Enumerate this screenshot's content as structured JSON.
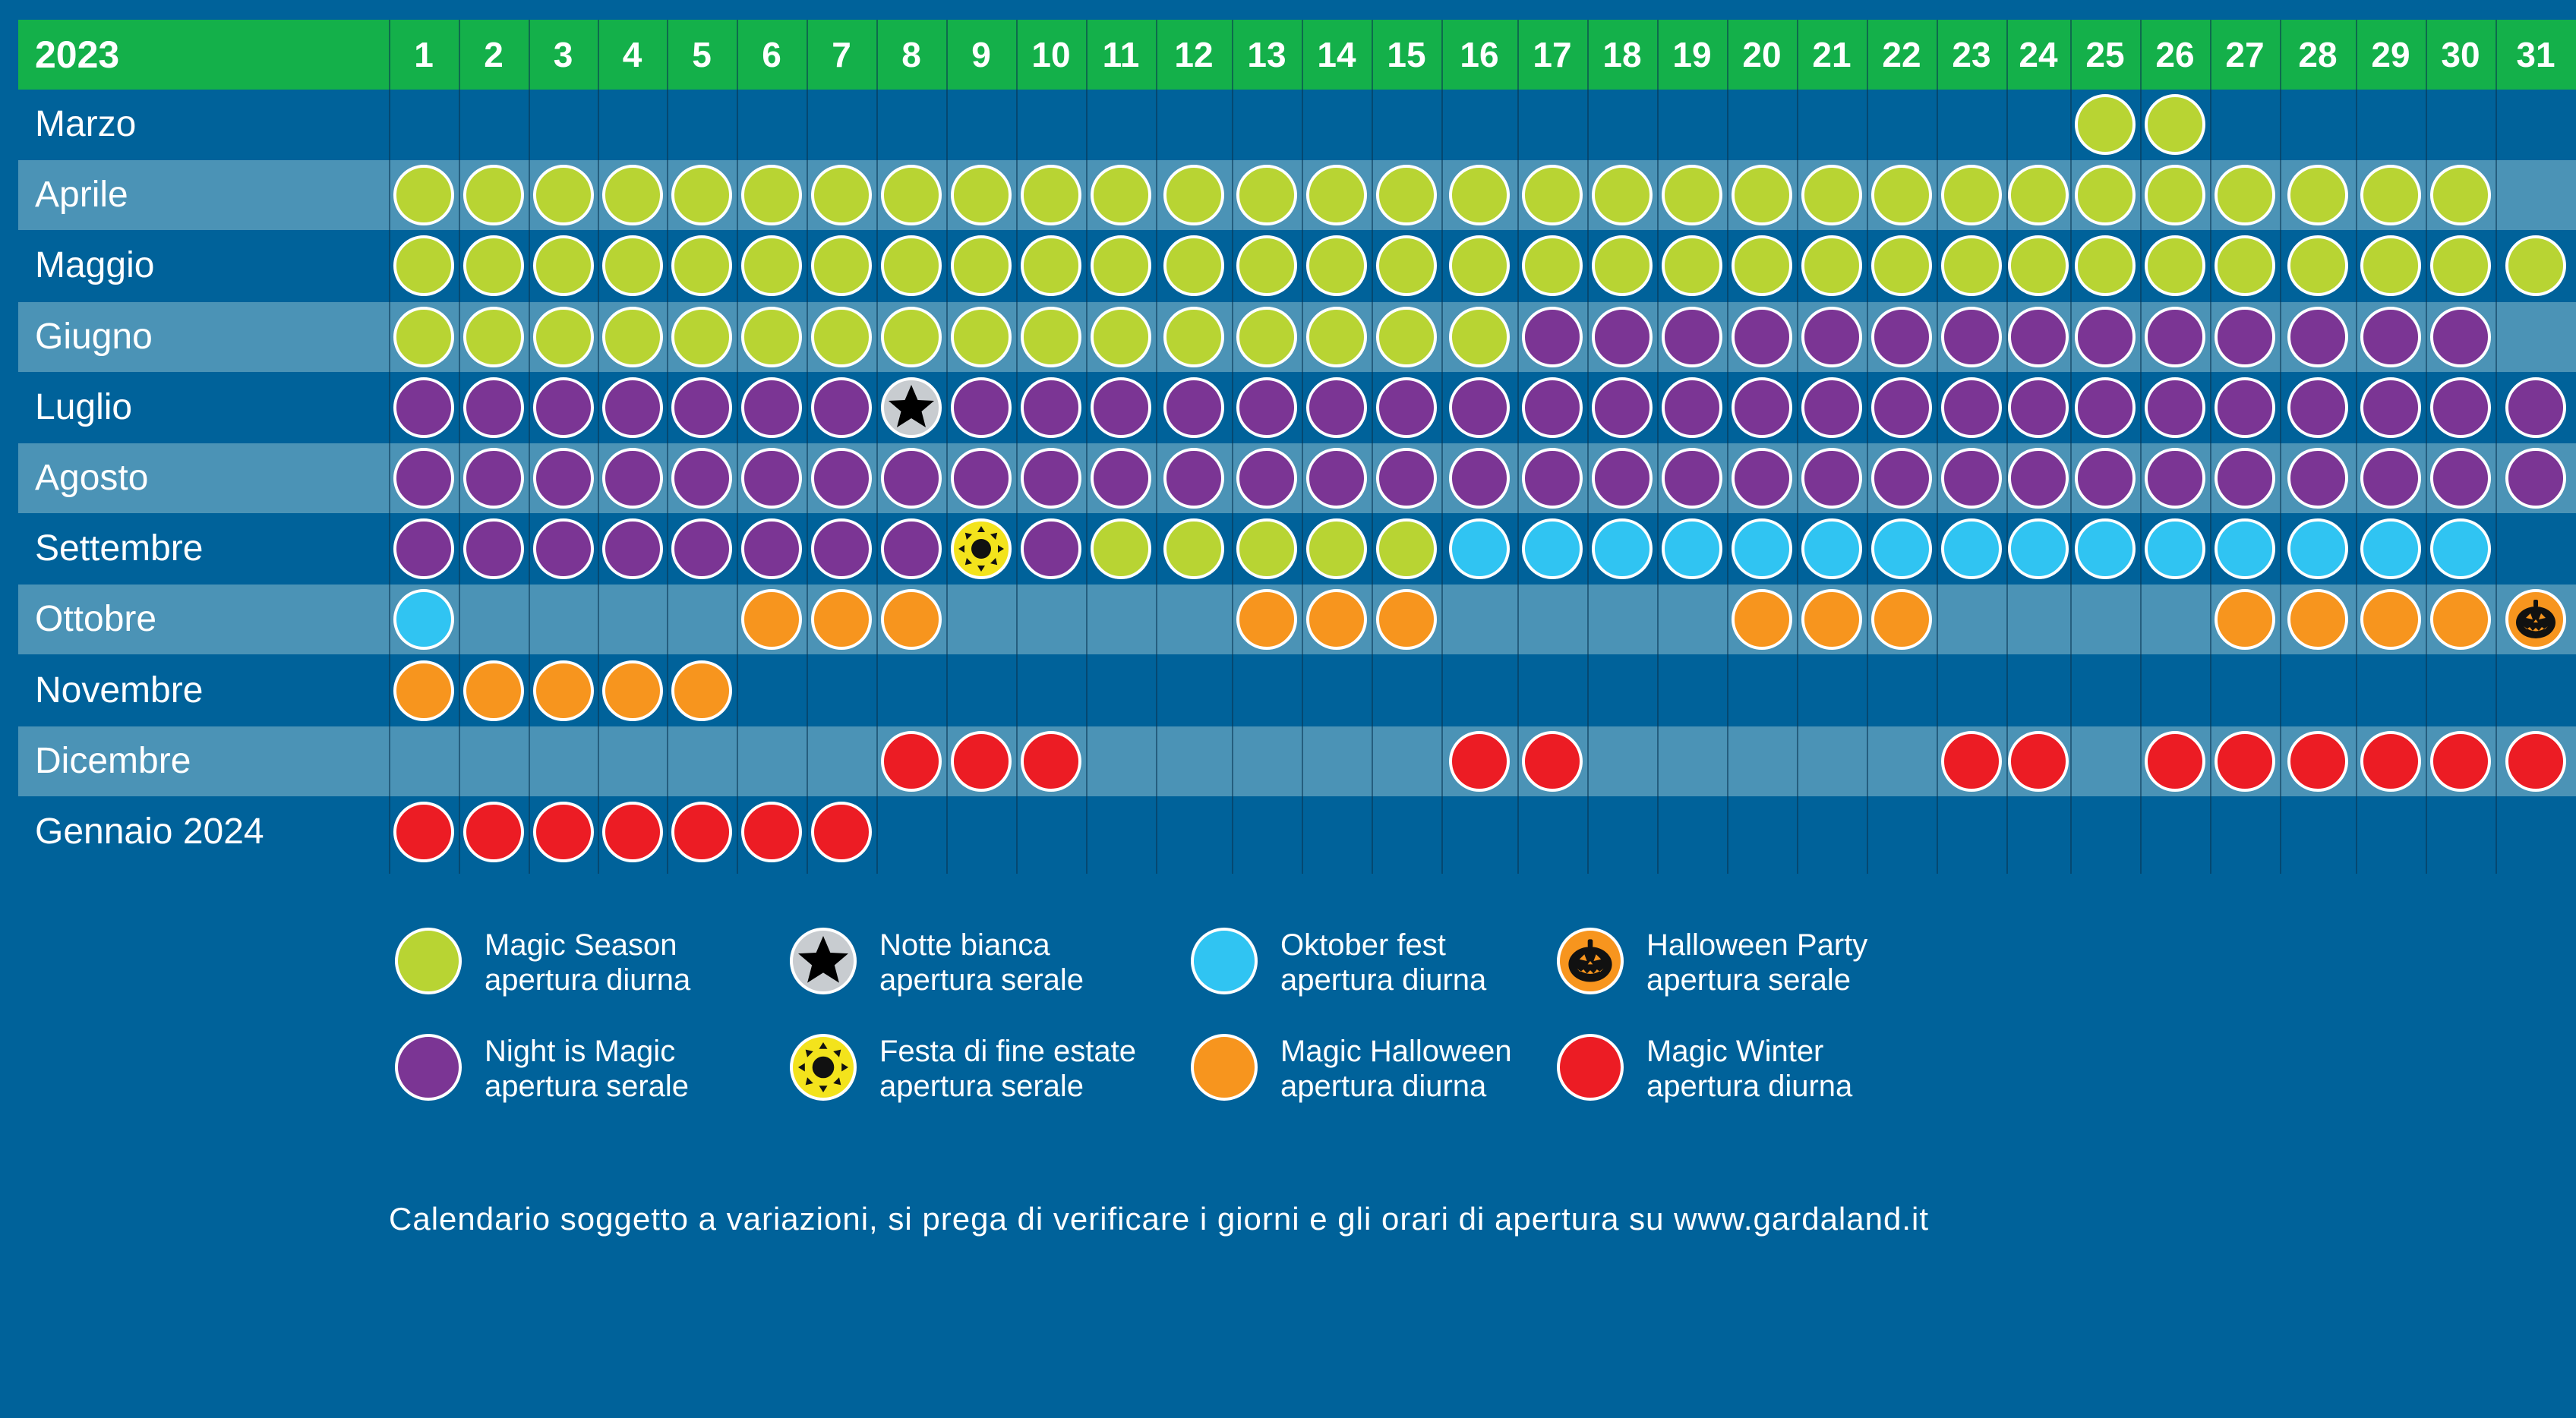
{
  "calendar": {
    "year": "2023",
    "days": [
      "1",
      "2",
      "3",
      "4",
      "5",
      "6",
      "7",
      "8",
      "9",
      "10",
      "11",
      "12",
      "13",
      "14",
      "15",
      "16",
      "17",
      "18",
      "19",
      "20",
      "21",
      "22",
      "23",
      "24",
      "25",
      "26",
      "27",
      "28",
      "29",
      "30",
      "31"
    ],
    "months": [
      {
        "name": "Marzo",
        "days": {
          "25": "magic-season",
          "26": "magic-season"
        }
      },
      {
        "name": "Aprile",
        "days": {
          "1": "magic-season",
          "2": "magic-season",
          "3": "magic-season",
          "4": "magic-season",
          "5": "magic-season",
          "6": "magic-season",
          "7": "magic-season",
          "8": "magic-season",
          "9": "magic-season",
          "10": "magic-season",
          "11": "magic-season",
          "12": "magic-season",
          "13": "magic-season",
          "14": "magic-season",
          "15": "magic-season",
          "16": "magic-season",
          "17": "magic-season",
          "18": "magic-season",
          "19": "magic-season",
          "20": "magic-season",
          "21": "magic-season",
          "22": "magic-season",
          "23": "magic-season",
          "24": "magic-season",
          "25": "magic-season",
          "26": "magic-season",
          "27": "magic-season",
          "28": "magic-season",
          "29": "magic-season",
          "30": "magic-season"
        }
      },
      {
        "name": "Maggio",
        "days": {
          "1": "magic-season",
          "2": "magic-season",
          "3": "magic-season",
          "4": "magic-season",
          "5": "magic-season",
          "6": "magic-season",
          "7": "magic-season",
          "8": "magic-season",
          "9": "magic-season",
          "10": "magic-season",
          "11": "magic-season",
          "12": "magic-season",
          "13": "magic-season",
          "14": "magic-season",
          "15": "magic-season",
          "16": "magic-season",
          "17": "magic-season",
          "18": "magic-season",
          "19": "magic-season",
          "20": "magic-season",
          "21": "magic-season",
          "22": "magic-season",
          "23": "magic-season",
          "24": "magic-season",
          "25": "magic-season",
          "26": "magic-season",
          "27": "magic-season",
          "28": "magic-season",
          "29": "magic-season",
          "30": "magic-season",
          "31": "magic-season"
        }
      },
      {
        "name": "Giugno",
        "days": {
          "1": "magic-season",
          "2": "magic-season",
          "3": "magic-season",
          "4": "magic-season",
          "5": "magic-season",
          "6": "magic-season",
          "7": "magic-season",
          "8": "magic-season",
          "9": "magic-season",
          "10": "magic-season",
          "11": "magic-season",
          "12": "magic-season",
          "13": "magic-season",
          "14": "magic-season",
          "15": "magic-season",
          "16": "magic-season",
          "17": "night-is-magic",
          "18": "night-is-magic",
          "19": "night-is-magic",
          "20": "night-is-magic",
          "21": "night-is-magic",
          "22": "night-is-magic",
          "23": "night-is-magic",
          "24": "night-is-magic",
          "25": "night-is-magic",
          "26": "night-is-magic",
          "27": "night-is-magic",
          "28": "night-is-magic",
          "29": "night-is-magic",
          "30": "night-is-magic"
        }
      },
      {
        "name": "Luglio",
        "days": {
          "1": "night-is-magic",
          "2": "night-is-magic",
          "3": "night-is-magic",
          "4": "night-is-magic",
          "5": "night-is-magic",
          "6": "night-is-magic",
          "7": "night-is-magic",
          "8": "notte-bianca",
          "9": "night-is-magic",
          "10": "night-is-magic",
          "11": "night-is-magic",
          "12": "night-is-magic",
          "13": "night-is-magic",
          "14": "night-is-magic",
          "15": "night-is-magic",
          "16": "night-is-magic",
          "17": "night-is-magic",
          "18": "night-is-magic",
          "19": "night-is-magic",
          "20": "night-is-magic",
          "21": "night-is-magic",
          "22": "night-is-magic",
          "23": "night-is-magic",
          "24": "night-is-magic",
          "25": "night-is-magic",
          "26": "night-is-magic",
          "27": "night-is-magic",
          "28": "night-is-magic",
          "29": "night-is-magic",
          "30": "night-is-magic",
          "31": "night-is-magic"
        }
      },
      {
        "name": "Agosto",
        "days": {
          "1": "night-is-magic",
          "2": "night-is-magic",
          "3": "night-is-magic",
          "4": "night-is-magic",
          "5": "night-is-magic",
          "6": "night-is-magic",
          "7": "night-is-magic",
          "8": "night-is-magic",
          "9": "night-is-magic",
          "10": "night-is-magic",
          "11": "night-is-magic",
          "12": "night-is-magic",
          "13": "night-is-magic",
          "14": "night-is-magic",
          "15": "night-is-magic",
          "16": "night-is-magic",
          "17": "night-is-magic",
          "18": "night-is-magic",
          "19": "night-is-magic",
          "20": "night-is-magic",
          "21": "night-is-magic",
          "22": "night-is-magic",
          "23": "night-is-magic",
          "24": "night-is-magic",
          "25": "night-is-magic",
          "26": "night-is-magic",
          "27": "night-is-magic",
          "28": "night-is-magic",
          "29": "night-is-magic",
          "30": "night-is-magic",
          "31": "night-is-magic"
        }
      },
      {
        "name": "Settembre",
        "days": {
          "1": "night-is-magic",
          "2": "night-is-magic",
          "3": "night-is-magic",
          "4": "night-is-magic",
          "5": "night-is-magic",
          "6": "night-is-magic",
          "7": "night-is-magic",
          "8": "night-is-magic",
          "9": "festa-fine-estate",
          "10": "night-is-magic",
          "11": "magic-season",
          "12": "magic-season",
          "13": "magic-season",
          "14": "magic-season",
          "15": "magic-season",
          "16": "oktober-fest",
          "17": "oktober-fest",
          "18": "oktober-fest",
          "19": "oktober-fest",
          "20": "oktober-fest",
          "21": "oktober-fest",
          "22": "oktober-fest",
          "23": "oktober-fest",
          "24": "oktober-fest",
          "25": "oktober-fest",
          "26": "oktober-fest",
          "27": "oktober-fest",
          "28": "oktober-fest",
          "29": "oktober-fest",
          "30": "oktober-fest"
        }
      },
      {
        "name": "Ottobre",
        "days": {
          "1": "oktober-fest",
          "6": "magic-halloween",
          "7": "magic-halloween",
          "8": "magic-halloween",
          "13": "magic-halloween",
          "14": "magic-halloween",
          "15": "magic-halloween",
          "20": "magic-halloween",
          "21": "magic-halloween",
          "22": "magic-halloween",
          "27": "magic-halloween",
          "28": "magic-halloween",
          "29": "magic-halloween",
          "30": "magic-halloween",
          "31": "halloween-party"
        }
      },
      {
        "name": "Novembre",
        "days": {
          "1": "magic-halloween",
          "2": "magic-halloween",
          "3": "magic-halloween",
          "4": "magic-halloween",
          "5": "magic-halloween"
        }
      },
      {
        "name": "Dicembre",
        "days": {
          "8": "magic-winter",
          "9": "magic-winter",
          "10": "magic-winter",
          "16": "magic-winter",
          "17": "magic-winter",
          "23": "magic-winter",
          "24": "magic-winter",
          "26": "magic-winter",
          "27": "magic-winter",
          "28": "magic-winter",
          "29": "magic-winter",
          "30": "magic-winter",
          "31": "magic-winter"
        }
      },
      {
        "name": "Gennaio 2024",
        "days": {
          "1": "magic-winter",
          "2": "magic-winter",
          "3": "magic-winter",
          "4": "magic-winter",
          "5": "magic-winter",
          "6": "magic-winter",
          "7": "magic-winter"
        }
      }
    ]
  },
  "event_types": {
    "magic-season": {
      "color": "#b8d433",
      "icon": "none"
    },
    "night-is-magic": {
      "color": "#7b3594",
      "icon": "none"
    },
    "notte-bianca": {
      "color": "#c8ccd0",
      "icon": "star-icon"
    },
    "festa-fine-estate": {
      "color": "#f3e31c",
      "icon": "sun-icon"
    },
    "oktober-fest": {
      "color": "#30c4f2",
      "icon": "none"
    },
    "magic-halloween": {
      "color": "#f7951e",
      "icon": "none"
    },
    "halloween-party": {
      "color": "#f7951e",
      "icon": "pumpkin-icon"
    },
    "magic-winter": {
      "color": "#ec1c24",
      "icon": "none"
    }
  },
  "legend": [
    {
      "type": "magic-season",
      "line1": "Magic Season",
      "line2": "apertura diurna"
    },
    {
      "type": "notte-bianca",
      "line1": "Notte bianca",
      "line2": "apertura serale"
    },
    {
      "type": "oktober-fest",
      "line1": "Oktober fest",
      "line2": "apertura diurna"
    },
    {
      "type": "halloween-party",
      "line1": "Halloween Party",
      "line2": "apertura serale"
    },
    {
      "type": "night-is-magic",
      "line1": "Night is Magic",
      "line2": "apertura serale"
    },
    {
      "type": "festa-fine-estate",
      "line1": "Festa di fine estate",
      "line2": "apertura serale"
    },
    {
      "type": "magic-halloween",
      "line1": "Magic Halloween",
      "line2": "apertura diurna"
    },
    {
      "type": "magic-winter",
      "line1": "Magic Winter",
      "line2": "apertura diurna"
    }
  ],
  "colors": {
    "background": "#00629a",
    "header": "#14b04a",
    "stripe": "#4b93b6"
  },
  "footer": {
    "note": "Calendario soggetto a variazioni, si prega di verificare i giorni e gli orari di apertura su www.gardaland.it"
  }
}
